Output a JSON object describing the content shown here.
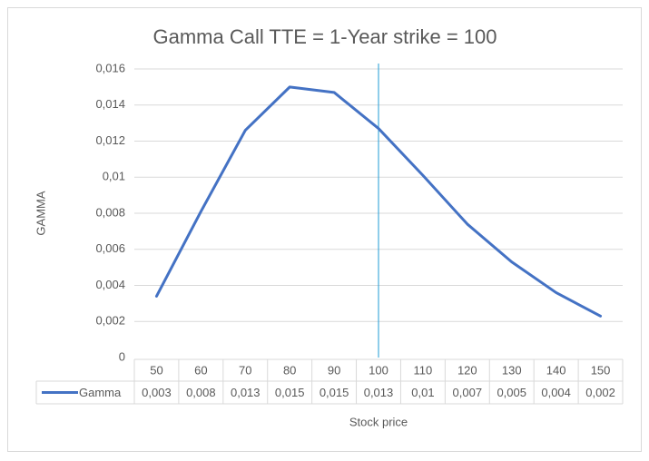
{
  "chart_data": {
    "type": "line",
    "title": "Gamma Call  TTE = 1-Year  strike =  100",
    "x_label": "Stock price",
    "y_label": "GAMMA",
    "categories": [
      "50",
      "60",
      "70",
      "80",
      "90",
      "100",
      "110",
      "120",
      "130",
      "140",
      "150"
    ],
    "series": [
      {
        "name": "Gamma",
        "color": "#4472c4",
        "values": [
          0.0034,
          0.0081,
          0.0126,
          0.015,
          0.0147,
          0.0127,
          0.0101,
          0.0074,
          0.0053,
          0.0036,
          0.0023
        ],
        "value_labels": [
          "0,003",
          "0,008",
          "0,013",
          "0,015",
          "0,015",
          "0,013",
          "0,01",
          "0,007",
          "0,005",
          "0,004",
          "0,002"
        ]
      }
    ],
    "strike_line": {
      "category": "100",
      "color": "#1f9bd6"
    },
    "ylim": [
      0,
      0.016
    ],
    "yticks": [
      0,
      {
        "value": 0.002,
        "label": "0,002"
      },
      {
        "value": 0.004,
        "label": "0,004"
      },
      {
        "value": 0.006,
        "label": "0,006"
      },
      {
        "value": 0.008,
        "label": "0,008"
      },
      {
        "value": 0.01,
        "label": "0,01"
      },
      {
        "value": 0.012,
        "label": "0,012"
      },
      {
        "value": 0.014,
        "label": "0,014"
      },
      {
        "value": 0.016,
        "label": "0,016"
      }
    ],
    "grid": true,
    "data_table": true
  }
}
